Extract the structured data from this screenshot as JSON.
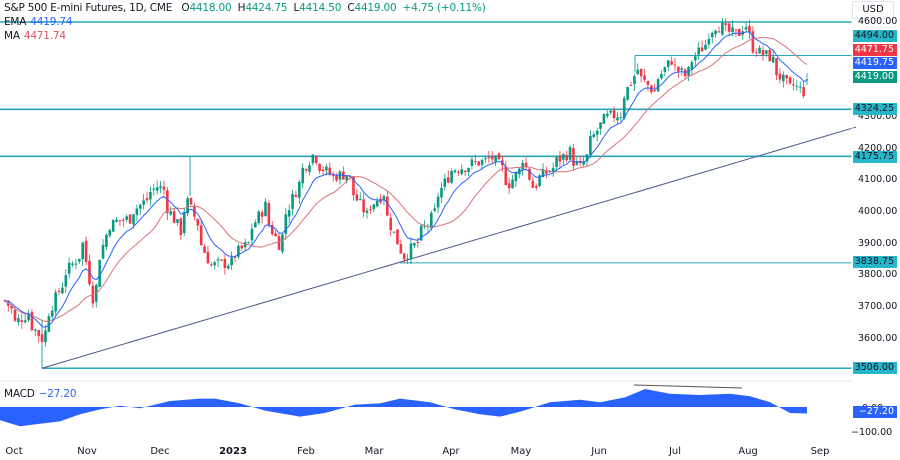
{
  "header": {
    "symbol": "S&P 500 E-mini Futures, 1D, CME",
    "open_label": "O",
    "open": "4418.00",
    "high_label": "H",
    "high": "4424.75",
    "low_label": "L",
    "low": "4414.50",
    "close_label": "C",
    "close": "4419.00",
    "change": "+4.75 (+0.11%)",
    "currency": "USD"
  },
  "indicators": {
    "ema": {
      "label": "EMA",
      "value": "4419.74",
      "color": "#2962ff"
    },
    "ma": {
      "label": "MA",
      "value": "4471.74",
      "color": "#e0606b"
    },
    "macd": {
      "label": "MACD",
      "value": "−27.20",
      "color": "#2962ff"
    }
  },
  "colors": {
    "up": "#089981",
    "down": "#f23645",
    "level_line": "#26a6b8",
    "trendline": "#4a5a8a",
    "ema_line": "#2962ff",
    "ma_line": "#d9737a",
    "macd_fill": "#2962ff"
  },
  "price_axis": {
    "ticks": [
      "4600.00",
      "4300.00",
      "4200.00",
      "4100.00",
      "4000.00",
      "3900.00",
      "3800.00",
      "3700.00",
      "3600.00"
    ],
    "labels": [
      {
        "text": "4494.00",
        "bg": "#26b5c9",
        "fg": "#131722"
      },
      {
        "text": "4471.75",
        "bg": "#f23645",
        "fg": "#ffffff"
      },
      {
        "text": "4419.75",
        "bg": "#2962ff",
        "fg": "#ffffff"
      },
      {
        "text": "4419.00",
        "bg": "#089981",
        "fg": "#ffffff"
      },
      {
        "text": "4324.25",
        "bg": "#26b5c9",
        "fg": "#131722"
      },
      {
        "text": "4175.75",
        "bg": "#26b5c9",
        "fg": "#131722"
      },
      {
        "text": "3838.75",
        "bg": "#26b5c9",
        "fg": "#131722"
      },
      {
        "text": "3506.00",
        "bg": "#26b5c9",
        "fg": "#131722"
      }
    ]
  },
  "macd_axis": {
    "ticks": [
      "0.00",
      "−100.00"
    ],
    "current_label": "−27.20"
  },
  "time_axis": {
    "labels": [
      {
        "text": "Oct",
        "bold": false
      },
      {
        "text": "Nov",
        "bold": false
      },
      {
        "text": "Dec",
        "bold": false
      },
      {
        "text": "2023",
        "bold": true
      },
      {
        "text": "Feb",
        "bold": false
      },
      {
        "text": "Mar",
        "bold": false
      },
      {
        "text": "Apr",
        "bold": false
      },
      {
        "text": "May",
        "bold": false
      },
      {
        "text": "Jun",
        "bold": false
      },
      {
        "text": "Jul",
        "bold": false
      },
      {
        "text": "Aug",
        "bold": false
      },
      {
        "text": "Sep",
        "bold": false
      }
    ]
  },
  "chart_data": [
    {
      "type": "candlestick",
      "title": "S&P 500 E-mini Futures, 1D, CME",
      "xlabel": "",
      "ylabel": "USD",
      "categories": [
        "Oct",
        "Nov",
        "Dec",
        "2023",
        "Feb",
        "Mar",
        "Apr",
        "May",
        "Jun",
        "Jul",
        "Aug",
        "Sep"
      ],
      "ylim": [
        3480,
        4640
      ],
      "last_bar": {
        "open": 4418.0,
        "high": 4424.75,
        "low": 4414.5,
        "close": 4419.0,
        "change": 4.75,
        "change_pct": 0.11
      },
      "close_waypoints": [
        {
          "date": "2022-09-28",
          "close": 3720
        },
        {
          "date": "2022-10-03",
          "close": 3650
        },
        {
          "date": "2022-10-07",
          "close": 3680
        },
        {
          "date": "2022-10-13",
          "close": 3600
        },
        {
          "date": "2022-10-21",
          "close": 3770
        },
        {
          "date": "2022-10-31",
          "close": 3900
        },
        {
          "date": "2022-11-03",
          "close": 3730
        },
        {
          "date": "2022-11-10",
          "close": 3960
        },
        {
          "date": "2022-11-18",
          "close": 3980
        },
        {
          "date": "2022-11-30",
          "close": 4080
        },
        {
          "date": "2022-12-02",
          "close": 4070
        },
        {
          "date": "2022-12-09",
          "close": 3940
        },
        {
          "date": "2022-12-13",
          "close": 4030
        },
        {
          "date": "2022-12-22",
          "close": 3830
        },
        {
          "date": "2022-12-30",
          "close": 3840
        },
        {
          "date": "2023-01-06",
          "close": 3900
        },
        {
          "date": "2023-01-13",
          "close": 4020
        },
        {
          "date": "2023-01-19",
          "close": 3900
        },
        {
          "date": "2023-01-27",
          "close": 4090
        },
        {
          "date": "2023-02-02",
          "close": 4180
        },
        {
          "date": "2023-02-10",
          "close": 4110
        },
        {
          "date": "2023-02-16",
          "close": 4120
        },
        {
          "date": "2023-02-24",
          "close": 3990
        },
        {
          "date": "2023-03-03",
          "close": 4060
        },
        {
          "date": "2023-03-10",
          "close": 3880
        },
        {
          "date": "2023-03-13",
          "close": 3860
        },
        {
          "date": "2023-03-22",
          "close": 3960
        },
        {
          "date": "2023-03-31",
          "close": 4130
        },
        {
          "date": "2023-04-18",
          "close": 4170
        },
        {
          "date": "2023-04-25",
          "close": 4090
        },
        {
          "date": "2023-05-01",
          "close": 4170
        },
        {
          "date": "2023-05-04",
          "close": 4080
        },
        {
          "date": "2023-05-19",
          "close": 4190
        },
        {
          "date": "2023-05-24",
          "close": 4140
        },
        {
          "date": "2023-06-02",
          "close": 4290
        },
        {
          "date": "2023-06-09",
          "close": 4310
        },
        {
          "date": "2023-06-16",
          "close": 4450
        },
        {
          "date": "2023-06-23",
          "close": 4380
        },
        {
          "date": "2023-06-30",
          "close": 4480
        },
        {
          "date": "2023-07-06",
          "close": 4430
        },
        {
          "date": "2023-07-14",
          "close": 4530
        },
        {
          "date": "2023-07-19",
          "close": 4590
        },
        {
          "date": "2023-07-27",
          "close": 4560
        },
        {
          "date": "2023-08-01",
          "close": 4590
        },
        {
          "date": "2023-08-03",
          "close": 4520
        },
        {
          "date": "2023-08-10",
          "close": 4490
        },
        {
          "date": "2023-08-18",
          "close": 4390
        },
        {
          "date": "2023-08-21",
          "close": 4400
        },
        {
          "date": "2023-08-24",
          "close": 4380
        },
        {
          "date": "2023-08-25",
          "close": 4419
        }
      ],
      "horizontal_levels": [
        4600.0,
        4494.0,
        4324.25,
        4175.75,
        3838.75,
        3506.0
      ],
      "trendline": {
        "from": {
          "date": "2022-10-13",
          "price": 3506
        },
        "to": {
          "date": "2023-08-28",
          "price": 4250
        }
      },
      "indicators": {
        "EMA": 4419.74,
        "MA": 4471.74
      }
    },
    {
      "type": "area",
      "title": "MACD",
      "current_value": -27.2,
      "y_ticks": [
        0,
        -100
      ],
      "values_by_month": [
        {
          "month": "Oct",
          "value": -60
        },
        {
          "month": "Oct-end",
          "value": 5
        },
        {
          "month": "Nov",
          "value": 15
        },
        {
          "month": "Dec",
          "value": 55
        },
        {
          "month": "Jan",
          "value": -30
        },
        {
          "month": "Feb",
          "value": 55
        },
        {
          "month": "Mar",
          "value": -25
        },
        {
          "month": "Apr",
          "value": 40
        },
        {
          "month": "May",
          "value": 10
        },
        {
          "month": "Jun",
          "value": 30
        },
        {
          "month": "Jun-mid",
          "value": 75
        },
        {
          "month": "Jul",
          "value": 50
        },
        {
          "month": "Aug",
          "value": 45
        },
        {
          "month": "Aug-end",
          "value": -27.2
        }
      ],
      "annotation": "bearish divergence line across MACD peaks (mid-Jun to early Aug)"
    }
  ]
}
